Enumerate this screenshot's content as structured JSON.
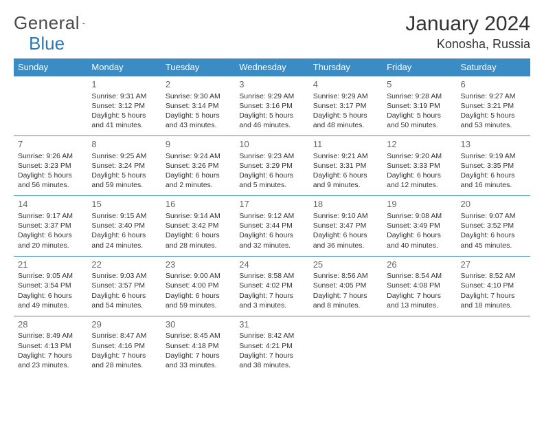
{
  "logo": {
    "text1": "General",
    "text2": "Blue"
  },
  "title": "January 2024",
  "location": "Konosha, Russia",
  "weekdays": [
    "Sunday",
    "Monday",
    "Tuesday",
    "Wednesday",
    "Thursday",
    "Friday",
    "Saturday"
  ],
  "header_bg": "#3b8bc4",
  "row_border": "#3b8bc4",
  "weeks": [
    [
      null,
      {
        "n": "1",
        "sr": "Sunrise: 9:31 AM",
        "ss": "Sunset: 3:12 PM",
        "d1": "Daylight: 5 hours",
        "d2": "and 41 minutes."
      },
      {
        "n": "2",
        "sr": "Sunrise: 9:30 AM",
        "ss": "Sunset: 3:14 PM",
        "d1": "Daylight: 5 hours",
        "d2": "and 43 minutes."
      },
      {
        "n": "3",
        "sr": "Sunrise: 9:29 AM",
        "ss": "Sunset: 3:16 PM",
        "d1": "Daylight: 5 hours",
        "d2": "and 46 minutes."
      },
      {
        "n": "4",
        "sr": "Sunrise: 9:29 AM",
        "ss": "Sunset: 3:17 PM",
        "d1": "Daylight: 5 hours",
        "d2": "and 48 minutes."
      },
      {
        "n": "5",
        "sr": "Sunrise: 9:28 AM",
        "ss": "Sunset: 3:19 PM",
        "d1": "Daylight: 5 hours",
        "d2": "and 50 minutes."
      },
      {
        "n": "6",
        "sr": "Sunrise: 9:27 AM",
        "ss": "Sunset: 3:21 PM",
        "d1": "Daylight: 5 hours",
        "d2": "and 53 minutes."
      }
    ],
    [
      {
        "n": "7",
        "sr": "Sunrise: 9:26 AM",
        "ss": "Sunset: 3:23 PM",
        "d1": "Daylight: 5 hours",
        "d2": "and 56 minutes."
      },
      {
        "n": "8",
        "sr": "Sunrise: 9:25 AM",
        "ss": "Sunset: 3:24 PM",
        "d1": "Daylight: 5 hours",
        "d2": "and 59 minutes."
      },
      {
        "n": "9",
        "sr": "Sunrise: 9:24 AM",
        "ss": "Sunset: 3:26 PM",
        "d1": "Daylight: 6 hours",
        "d2": "and 2 minutes."
      },
      {
        "n": "10",
        "sr": "Sunrise: 9:23 AM",
        "ss": "Sunset: 3:29 PM",
        "d1": "Daylight: 6 hours",
        "d2": "and 5 minutes."
      },
      {
        "n": "11",
        "sr": "Sunrise: 9:21 AM",
        "ss": "Sunset: 3:31 PM",
        "d1": "Daylight: 6 hours",
        "d2": "and 9 minutes."
      },
      {
        "n": "12",
        "sr": "Sunrise: 9:20 AM",
        "ss": "Sunset: 3:33 PM",
        "d1": "Daylight: 6 hours",
        "d2": "and 12 minutes."
      },
      {
        "n": "13",
        "sr": "Sunrise: 9:19 AM",
        "ss": "Sunset: 3:35 PM",
        "d1": "Daylight: 6 hours",
        "d2": "and 16 minutes."
      }
    ],
    [
      {
        "n": "14",
        "sr": "Sunrise: 9:17 AM",
        "ss": "Sunset: 3:37 PM",
        "d1": "Daylight: 6 hours",
        "d2": "and 20 minutes."
      },
      {
        "n": "15",
        "sr": "Sunrise: 9:15 AM",
        "ss": "Sunset: 3:40 PM",
        "d1": "Daylight: 6 hours",
        "d2": "and 24 minutes."
      },
      {
        "n": "16",
        "sr": "Sunrise: 9:14 AM",
        "ss": "Sunset: 3:42 PM",
        "d1": "Daylight: 6 hours",
        "d2": "and 28 minutes."
      },
      {
        "n": "17",
        "sr": "Sunrise: 9:12 AM",
        "ss": "Sunset: 3:44 PM",
        "d1": "Daylight: 6 hours",
        "d2": "and 32 minutes."
      },
      {
        "n": "18",
        "sr": "Sunrise: 9:10 AM",
        "ss": "Sunset: 3:47 PM",
        "d1": "Daylight: 6 hours",
        "d2": "and 36 minutes."
      },
      {
        "n": "19",
        "sr": "Sunrise: 9:08 AM",
        "ss": "Sunset: 3:49 PM",
        "d1": "Daylight: 6 hours",
        "d2": "and 40 minutes."
      },
      {
        "n": "20",
        "sr": "Sunrise: 9:07 AM",
        "ss": "Sunset: 3:52 PM",
        "d1": "Daylight: 6 hours",
        "d2": "and 45 minutes."
      }
    ],
    [
      {
        "n": "21",
        "sr": "Sunrise: 9:05 AM",
        "ss": "Sunset: 3:54 PM",
        "d1": "Daylight: 6 hours",
        "d2": "and 49 minutes."
      },
      {
        "n": "22",
        "sr": "Sunrise: 9:03 AM",
        "ss": "Sunset: 3:57 PM",
        "d1": "Daylight: 6 hours",
        "d2": "and 54 minutes."
      },
      {
        "n": "23",
        "sr": "Sunrise: 9:00 AM",
        "ss": "Sunset: 4:00 PM",
        "d1": "Daylight: 6 hours",
        "d2": "and 59 minutes."
      },
      {
        "n": "24",
        "sr": "Sunrise: 8:58 AM",
        "ss": "Sunset: 4:02 PM",
        "d1": "Daylight: 7 hours",
        "d2": "and 3 minutes."
      },
      {
        "n": "25",
        "sr": "Sunrise: 8:56 AM",
        "ss": "Sunset: 4:05 PM",
        "d1": "Daylight: 7 hours",
        "d2": "and 8 minutes."
      },
      {
        "n": "26",
        "sr": "Sunrise: 8:54 AM",
        "ss": "Sunset: 4:08 PM",
        "d1": "Daylight: 7 hours",
        "d2": "and 13 minutes."
      },
      {
        "n": "27",
        "sr": "Sunrise: 8:52 AM",
        "ss": "Sunset: 4:10 PM",
        "d1": "Daylight: 7 hours",
        "d2": "and 18 minutes."
      }
    ],
    [
      {
        "n": "28",
        "sr": "Sunrise: 8:49 AM",
        "ss": "Sunset: 4:13 PM",
        "d1": "Daylight: 7 hours",
        "d2": "and 23 minutes."
      },
      {
        "n": "29",
        "sr": "Sunrise: 8:47 AM",
        "ss": "Sunset: 4:16 PM",
        "d1": "Daylight: 7 hours",
        "d2": "and 28 minutes."
      },
      {
        "n": "30",
        "sr": "Sunrise: 8:45 AM",
        "ss": "Sunset: 4:18 PM",
        "d1": "Daylight: 7 hours",
        "d2": "and 33 minutes."
      },
      {
        "n": "31",
        "sr": "Sunrise: 8:42 AM",
        "ss": "Sunset: 4:21 PM",
        "d1": "Daylight: 7 hours",
        "d2": "and 38 minutes."
      },
      null,
      null,
      null
    ]
  ]
}
